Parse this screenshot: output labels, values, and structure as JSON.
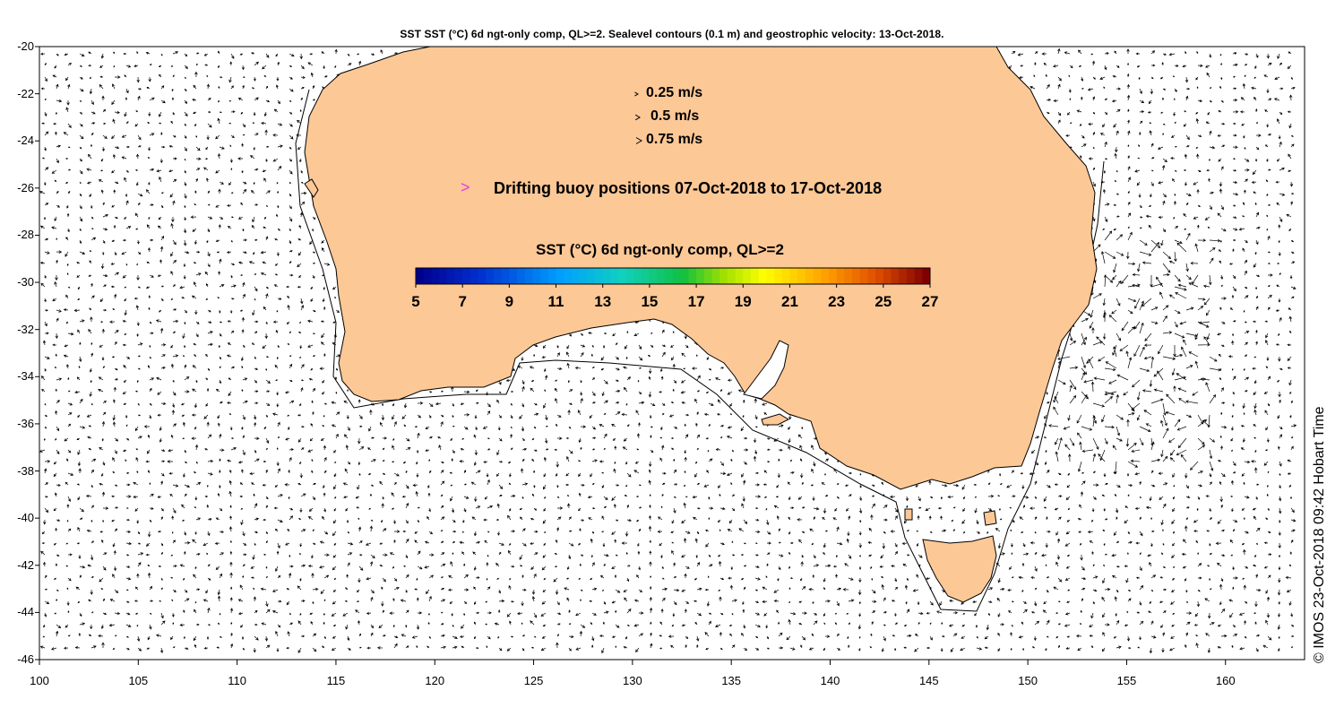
{
  "title": "SST SST (°C) 6d ngt-only comp, QL>=2. Sealevel contours (0.1 m) and geostrophic velocity: 13-Oct-2018.",
  "velocity_legend": [
    {
      "label": "0.25 m/s",
      "speed": 0.25
    },
    {
      "label": "0.5 m/s",
      "speed": 0.5
    },
    {
      "label": "0.75 m/s",
      "speed": 0.75
    }
  ],
  "buoy": {
    "glyph": ">",
    "label": "Drifting buoy positions 07-Oct-2018 to 17-Oct-2018",
    "color": "#e040e0"
  },
  "colorbar": {
    "title": "SST (°C) 6d ngt-only comp, QL>=2",
    "min": 5,
    "max": 27,
    "ticks": [
      "5",
      "7",
      "9",
      "11",
      "13",
      "15",
      "17",
      "19",
      "21",
      "23",
      "25",
      "27"
    ]
  },
  "credit": "© IMOS 23-Oct-2018 09:42 Hobart Time",
  "axes": {
    "lon_range": [
      100,
      164
    ],
    "lat_range": [
      -46,
      -20
    ],
    "x_ticks": [
      "100",
      "105",
      "110",
      "115",
      "120",
      "125",
      "130",
      "135",
      "140",
      "145",
      "150",
      "155",
      "160"
    ],
    "y_ticks": [
      "-20",
      "-22",
      "-24",
      "-26",
      "-28",
      "-30",
      "-32",
      "-34",
      "-36",
      "-38",
      "-40",
      "-42",
      "-44",
      "-46"
    ]
  },
  "colors": {
    "land": "#fcc896",
    "background": "#ffffff",
    "vectors": "#000000"
  }
}
